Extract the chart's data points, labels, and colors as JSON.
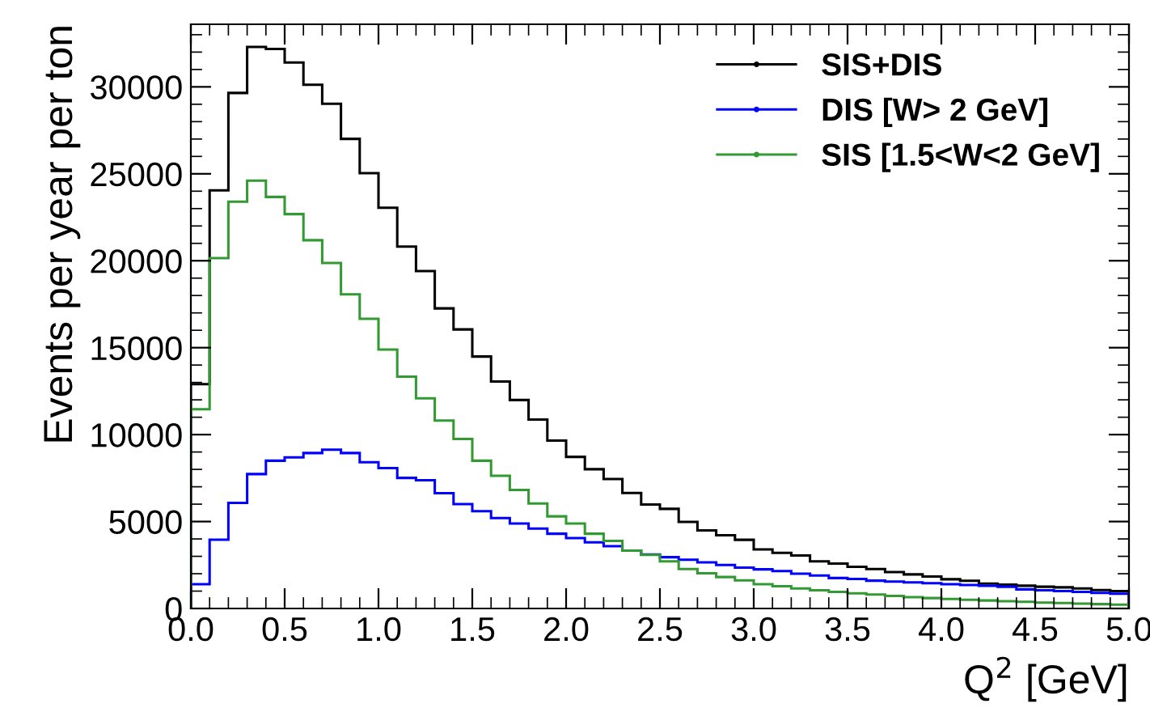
{
  "chart_data": {
    "type": "histogram",
    "xlabel": "Q$^{2}$ [GeV]",
    "ylabel": "Events per year per ton",
    "bins": [
      0,
      0.1,
      0.2,
      0.3,
      0.4,
      0.5,
      0.6,
      0.7,
      0.8,
      0.9,
      1.0,
      1.1,
      1.2,
      1.3,
      1.4,
      1.5,
      1.6,
      1.7,
      1.8,
      1.9,
      2.0,
      2.1,
      2.2,
      2.3,
      2.4,
      2.5,
      2.6,
      2.7,
      2.8,
      2.9,
      3.0,
      3.1,
      3.2,
      3.3,
      3.4,
      3.5,
      3.6,
      3.7,
      3.8,
      3.9,
      4.0,
      4.1,
      4.2,
      4.3,
      4.4,
      4.5,
      4.6,
      4.7,
      4.8,
      4.9,
      5.0
    ],
    "series": [
      {
        "name": "SIS+DIS",
        "color": "#000000",
        "values": [
          12900,
          24050,
          29650,
          32300,
          32180,
          31400,
          30120,
          29030,
          27010,
          25040,
          23050,
          20810,
          19410,
          17260,
          16050,
          14490,
          13050,
          11990,
          10870,
          9660,
          8720,
          8010,
          7450,
          6640,
          5980,
          5730,
          4980,
          4490,
          4210,
          3950,
          3400,
          3200,
          3050,
          2710,
          2585,
          2400,
          2270,
          2090,
          1960,
          1840,
          1680,
          1590,
          1430,
          1370,
          1310,
          1250,
          1215,
          1150,
          1060,
          1000
        ]
      },
      {
        "name": "DIS [W> 2 GeV]",
        "color": "#0000ff",
        "values": [
          1400,
          3960,
          6070,
          7730,
          8500,
          8690,
          8940,
          9130,
          8940,
          8410,
          8070,
          7510,
          7380,
          6630,
          6000,
          5600,
          5200,
          4890,
          4600,
          4300,
          4050,
          3800,
          3580,
          3330,
          3100,
          2950,
          2800,
          2650,
          2500,
          2350,
          2250,
          2150,
          2000,
          1900,
          1750,
          1700,
          1600,
          1550,
          1500,
          1450,
          1400,
          1350,
          1300,
          1250,
          1100,
          1050,
          1000,
          950,
          900,
          850
        ]
      },
      {
        "name": "SIS [1.5<W<2 GeV]",
        "color": "#339933",
        "values": [
          11460,
          20150,
          23400,
          24610,
          23670,
          22680,
          21180,
          19870,
          18070,
          16660,
          14890,
          13330,
          12090,
          10810,
          9750,
          8500,
          7630,
          6820,
          6040,
          5300,
          4890,
          4300,
          3890,
          3330,
          3080,
          2710,
          2270,
          2020,
          1810,
          1620,
          1400,
          1280,
          1150,
          1050,
          950,
          870,
          800,
          720,
          650,
          600,
          550,
          500,
          460,
          420,
          380,
          340,
          310,
          280,
          250,
          220
        ]
      }
    ],
    "xlim": [
      0,
      5
    ],
    "ylim": [
      0,
      33600
    ],
    "xticks": [
      {
        "value": 0,
        "label": "0.0"
      },
      {
        "value": 0.5,
        "label": "0.5"
      },
      {
        "value": 1,
        "label": "1.0"
      },
      {
        "value": 1.5,
        "label": "1.5"
      },
      {
        "value": 2,
        "label": "2.0"
      },
      {
        "value": 2.5,
        "label": "2.5"
      },
      {
        "value": 3,
        "label": "3.0"
      },
      {
        "value": 3.5,
        "label": "3.5"
      },
      {
        "value": 4,
        "label": "4.0"
      },
      {
        "value": 4.5,
        "label": "4.5"
      },
      {
        "value": 5,
        "label": "5.0"
      }
    ],
    "yticks": [
      0,
      5000,
      10000,
      15000,
      20000,
      25000,
      30000
    ],
    "legend": "top right",
    "grid": false
  }
}
